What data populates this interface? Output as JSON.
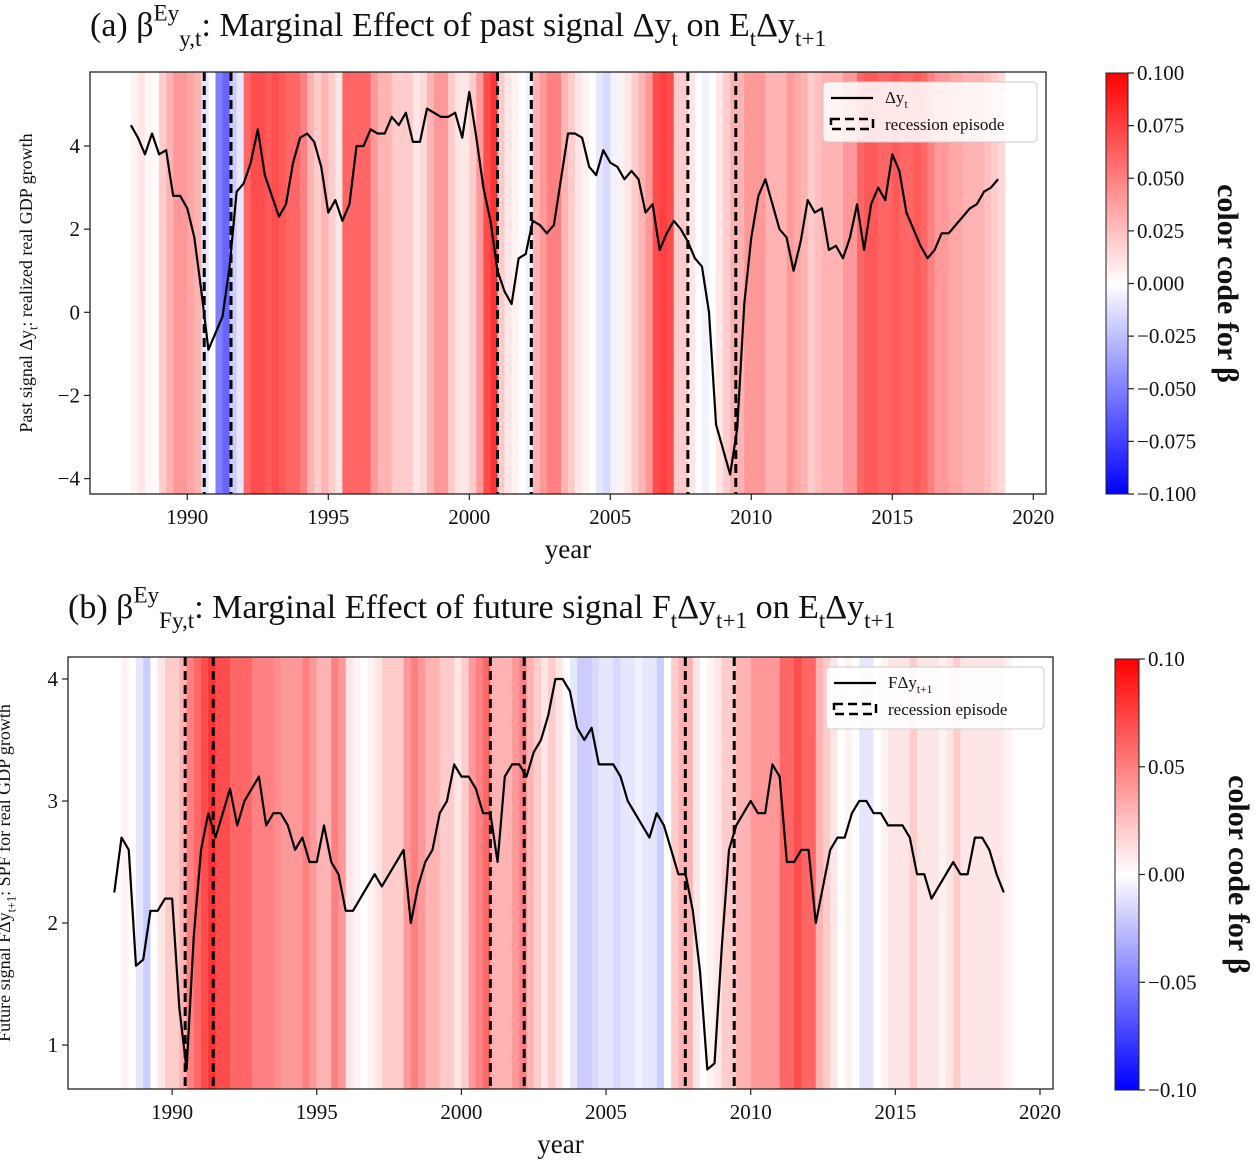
{
  "chart_data": [
    {
      "type": "line",
      "title": [
        {
          "text": "(a) β"
        },
        {
          "text": "Ey",
          "style": "sup"
        },
        {
          "text": "y,t",
          "style": "sub"
        },
        {
          "text": ": Marginal Effect of past signal Δy"
        },
        {
          "text": "t",
          "style": "sub"
        },
        {
          "text": " on E"
        },
        {
          "text": "t",
          "style": "sub"
        },
        {
          "text": "Δy"
        },
        {
          "text": "t+1",
          "style": "sub"
        }
      ],
      "xlabel": "year",
      "ylabel": [
        {
          "text": "Past signal Δy"
        },
        {
          "text": "t",
          "style": "sub"
        },
        {
          "text": ": realized real GDP growth"
        }
      ],
      "xlim": [
        1986.55,
        2020.45
      ],
      "ylim": [
        -4.37,
        5.78
      ],
      "xticks": [
        1990,
        1995,
        2000,
        2005,
        2010,
        2015,
        2020
      ],
      "yticks": [
        {
          "value": -4,
          "label": "−4"
        },
        {
          "value": -2,
          "label": "−2"
        },
        0,
        2,
        4
      ],
      "legend_loc": "upper right",
      "x": [
        1988,
        1988.25,
        1988.5,
        1988.75,
        1989,
        1989.25,
        1989.5,
        1989.75,
        1990,
        1990.25,
        1990.5,
        1990.75,
        1991,
        1991.25,
        1991.5,
        1991.75,
        1992,
        1992.25,
        1992.5,
        1992.75,
        1993,
        1993.25,
        1993.5,
        1993.75,
        1994,
        1994.25,
        1994.5,
        1994.75,
        1995,
        1995.25,
        1995.5,
        1995.75,
        1996,
        1996.25,
        1996.5,
        1996.75,
        1997,
        1997.25,
        1997.5,
        1997.75,
        1998,
        1998.25,
        1998.5,
        1998.75,
        1999,
        1999.25,
        1999.5,
        1999.75,
        2000,
        2000.25,
        2000.5,
        2000.75,
        2001,
        2001.25,
        2001.5,
        2001.75,
        2002,
        2002.25,
        2002.5,
        2002.75,
        2003,
        2003.25,
        2003.5,
        2003.75,
        2004,
        2004.25,
        2004.5,
        2004.75,
        2005,
        2005.25,
        2005.5,
        2005.75,
        2006,
        2006.25,
        2006.5,
        2006.75,
        2007,
        2007.25,
        2007.5,
        2007.75,
        2008,
        2008.25,
        2008.5,
        2008.75,
        2009,
        2009.25,
        2009.5,
        2009.75,
        2010,
        2010.25,
        2010.5,
        2010.75,
        2011,
        2011.25,
        2011.5,
        2011.75,
        2012,
        2012.25,
        2012.5,
        2012.75,
        2013,
        2013.25,
        2013.5,
        2013.75,
        2014,
        2014.25,
        2014.5,
        2014.75,
        2015,
        2015.25,
        2015.5,
        2015.75,
        2016,
        2016.25,
        2016.5,
        2016.75,
        2017,
        2017.25,
        2017.5,
        2017.75,
        2018,
        2018.25,
        2018.5,
        2018.75
      ],
      "series": [
        {
          "name": [
            {
              "text": "Δy"
            },
            {
              "text": "t",
              "style": "sub"
            }
          ],
          "color": "#000000",
          "values": [
            4.5,
            4.2,
            3.8,
            4.3,
            3.8,
            3.9,
            2.8,
            2.8,
            2.5,
            1.8,
            0.5,
            -0.9,
            -0.5,
            -0.1,
            1.1,
            2.9,
            3.1,
            3.6,
            4.4,
            3.3,
            2.8,
            2.3,
            2.6,
            3.6,
            4.2,
            4.3,
            4.1,
            3.5,
            2.4,
            2.7,
            2.2,
            2.6,
            4.0,
            4.0,
            4.4,
            4.3,
            4.3,
            4.7,
            4.5,
            4.8,
            4.1,
            4.1,
            4.9,
            4.8,
            4.7,
            4.7,
            4.8,
            4.2,
            5.3,
            4.2,
            3.0,
            2.2,
            1.0,
            0.5,
            0.2,
            1.3,
            1.4,
            2.2,
            2.1,
            1.9,
            2.1,
            3.2,
            4.3,
            4.3,
            4.2,
            3.5,
            3.3,
            3.9,
            3.6,
            3.5,
            3.2,
            3.4,
            3.2,
            2.4,
            2.6,
            1.5,
            1.9,
            2.2,
            2.0,
            1.7,
            1.3,
            1.1,
            0.0,
            -2.7,
            -3.3,
            -3.9,
            -2.8,
            0.2,
            1.8,
            2.8,
            3.2,
            2.6,
            2.0,
            1.8,
            1.0,
            1.7,
            2.7,
            2.4,
            2.5,
            1.5,
            1.6,
            1.3,
            1.8,
            2.6,
            1.5,
            2.6,
            3.0,
            2.7,
            3.8,
            3.4,
            2.4,
            2.0,
            1.6,
            1.3,
            1.5,
            1.9,
            1.9,
            2.1,
            2.3,
            2.5,
            2.6,
            2.9,
            3.0,
            3.2
          ]
        }
      ],
      "recessions": {
        "name": "recession episode",
        "color": "#000000",
        "x": [
          1990.6,
          1991.55,
          2001.0,
          2002.2,
          2007.75,
          2009.45
        ]
      },
      "background": {
        "colormap": "bwr",
        "values": [
          0.005,
          0.01,
          0.003,
          0.002,
          0.02,
          0.03,
          0.04,
          0.04,
          0.035,
          0.03,
          -0.01,
          0.0,
          -0.05,
          -0.06,
          -0.02,
          -0.01,
          0.06,
          0.07,
          0.07,
          0.065,
          0.07,
          0.065,
          0.06,
          0.06,
          0.05,
          0.03,
          0.02,
          0.03,
          0.02,
          0.01,
          0.06,
          0.06,
          0.06,
          0.06,
          0.04,
          0.03,
          0.03,
          0.02,
          0.02,
          0.02,
          0.01,
          0.015,
          0.03,
          0.04,
          0.04,
          0.02,
          0.01,
          0.01,
          0.02,
          0.04,
          0.07,
          0.08,
          0.02,
          0.01,
          0.005,
          0.0,
          -0.005,
          0.03,
          0.04,
          0.05,
          0.05,
          0.03,
          0.02,
          0.01,
          0.005,
          0.0,
          -0.01,
          -0.015,
          -0.005,
          0.005,
          0.01,
          0.02,
          0.03,
          0.04,
          0.07,
          0.075,
          0.07,
          0.02,
          0.02,
          0.01,
          0.0,
          -0.005,
          0.0,
          0.01,
          0.02,
          0.03,
          0.03,
          0.04,
          0.04,
          0.04,
          0.03,
          0.03,
          0.03,
          0.04,
          0.035,
          0.03,
          0.02,
          0.025,
          0.03,
          0.03,
          0.03,
          0.04,
          0.04,
          0.06,
          0.065,
          0.065,
          0.06,
          0.06,
          0.065,
          0.06,
          0.06,
          0.065,
          0.06,
          0.05,
          0.04,
          0.04,
          0.035,
          0.035,
          0.03,
          0.03,
          0.03,
          0.025,
          0.02,
          0.015
        ]
      },
      "colorbar": {
        "label": "color code for β",
        "clim": [
          -0.1,
          0.1
        ],
        "ticks": [
          {
            "value": 0.1,
            "label": "0.100"
          },
          {
            "value": 0.075,
            "label": "0.075"
          },
          {
            "value": 0.05,
            "label": "0.050"
          },
          {
            "value": 0.025,
            "label": "0.025"
          },
          {
            "value": 0,
            "label": "0.000"
          },
          {
            "value": -0.025,
            "label": "−0.025"
          },
          {
            "value": -0.05,
            "label": "−0.050"
          },
          {
            "value": -0.075,
            "label": "−0.075"
          },
          {
            "value": -0.1,
            "label": "−0.100"
          }
        ]
      }
    },
    {
      "type": "line",
      "title": [
        {
          "text": "(b) β"
        },
        {
          "text": "Ey",
          "style": "sup"
        },
        {
          "text": "Fy,t",
          "style": "sub"
        },
        {
          "text": ": Marginal Effect of future signal F"
        },
        {
          "text": "t",
          "style": "sub"
        },
        {
          "text": "Δy"
        },
        {
          "text": "t+1",
          "style": "sub"
        },
        {
          "text": " on E"
        },
        {
          "text": "t",
          "style": "sub"
        },
        {
          "text": "Δy"
        },
        {
          "text": "t+1",
          "style": "sub"
        }
      ],
      "xlabel": "year",
      "ylabel": [
        {
          "text": "Future signal FΔy"
        },
        {
          "text": "t+1",
          "style": "sub"
        },
        {
          "text": ": SPF for real GDP growth"
        }
      ],
      "xlim": [
        1986.4,
        2020.45
      ],
      "ylim": [
        0.64,
        4.18
      ],
      "xticks": [
        1990,
        1995,
        2000,
        2005,
        2010,
        2015,
        2020
      ],
      "yticks": [
        1,
        2,
        3,
        4
      ],
      "legend_loc": "upper right",
      "x": [
        1988,
        1988.25,
        1988.5,
        1988.75,
        1989,
        1989.25,
        1989.5,
        1989.75,
        1990,
        1990.25,
        1990.5,
        1990.75,
        1991,
        1991.25,
        1991.5,
        1991.75,
        1992,
        1992.25,
        1992.5,
        1992.75,
        1993,
        1993.25,
        1993.5,
        1993.75,
        1994,
        1994.25,
        1994.5,
        1994.75,
        1995,
        1995.25,
        1995.5,
        1995.75,
        1996,
        1996.25,
        1996.5,
        1996.75,
        1997,
        1997.25,
        1997.5,
        1997.75,
        1998,
        1998.25,
        1998.5,
        1998.75,
        1999,
        1999.25,
        1999.5,
        1999.75,
        2000,
        2000.25,
        2000.5,
        2000.75,
        2001,
        2001.25,
        2001.5,
        2001.75,
        2002,
        2002.25,
        2002.5,
        2002.75,
        2003,
        2003.25,
        2003.5,
        2003.75,
        2004,
        2004.25,
        2004.5,
        2004.75,
        2005,
        2005.25,
        2005.5,
        2005.75,
        2006,
        2006.25,
        2006.5,
        2006.75,
        2007,
        2007.25,
        2007.5,
        2007.75,
        2008,
        2008.25,
        2008.5,
        2008.75,
        2009,
        2009.25,
        2009.5,
        2009.75,
        2010,
        2010.25,
        2010.5,
        2010.75,
        2011,
        2011.25,
        2011.5,
        2011.75,
        2012,
        2012.25,
        2012.5,
        2012.75,
        2013,
        2013.25,
        2013.5,
        2013.75,
        2014,
        2014.25,
        2014.5,
        2014.75,
        2015,
        2015.25,
        2015.5,
        2015.75,
        2016,
        2016.25,
        2016.5,
        2016.75,
        2017,
        2017.25,
        2017.5,
        2017.75,
        2018,
        2018.25,
        2018.5,
        2018.75
      ],
      "series": [
        {
          "name": [
            {
              "text": "FΔy"
            },
            {
              "text": "t+1",
              "style": "sub"
            }
          ],
          "color": "#000000",
          "values": [
            2.25,
            2.7,
            2.6,
            1.65,
            1.7,
            2.1,
            2.1,
            2.2,
            2.2,
            1.3,
            0.8,
            1.9,
            2.6,
            2.9,
            2.7,
            2.9,
            3.1,
            2.8,
            3.0,
            3.1,
            3.2,
            2.8,
            2.9,
            2.9,
            2.8,
            2.6,
            2.7,
            2.5,
            2.5,
            2.8,
            2.5,
            2.4,
            2.1,
            2.1,
            2.2,
            2.3,
            2.4,
            2.3,
            2.4,
            2.5,
            2.6,
            2.0,
            2.3,
            2.5,
            2.6,
            2.9,
            3.0,
            3.3,
            3.2,
            3.2,
            3.1,
            2.9,
            2.9,
            2.5,
            3.2,
            3.3,
            3.3,
            3.2,
            3.4,
            3.5,
            3.7,
            4.0,
            4.0,
            3.9,
            3.6,
            3.5,
            3.6,
            3.3,
            3.3,
            3.3,
            3.2,
            3.0,
            2.9,
            2.8,
            2.7,
            2.9,
            2.8,
            2.6,
            2.4,
            2.4,
            2.1,
            1.6,
            0.8,
            0.85,
            1.8,
            2.6,
            2.8,
            2.9,
            3.0,
            2.9,
            2.9,
            3.3,
            3.2,
            2.5,
            2.5,
            2.6,
            2.6,
            2.0,
            2.3,
            2.6,
            2.7,
            2.7,
            2.9,
            3.0,
            3.0,
            2.9,
            2.9,
            2.8,
            2.8,
            2.8,
            2.7,
            2.4,
            2.4,
            2.2,
            2.3,
            2.4,
            2.5,
            2.4,
            2.4,
            2.7,
            2.7,
            2.6,
            2.4,
            2.25
          ]
        }
      ],
      "recessions": {
        "name": "recession episode",
        "color": "#000000",
        "x": [
          1990.45,
          1991.42,
          2001.0,
          2002.17,
          2007.74,
          2009.43
        ]
      },
      "background": {
        "colormap": "bwr",
        "values": [
          0.0,
          0.005,
          0.0,
          -0.01,
          -0.02,
          0.0,
          0.01,
          0.02,
          0.02,
          0.03,
          0.05,
          0.06,
          0.07,
          0.08,
          0.07,
          0.07,
          0.06,
          0.06,
          0.06,
          0.05,
          0.05,
          0.05,
          0.045,
          0.04,
          0.04,
          0.04,
          0.05,
          0.04,
          0.03,
          0.03,
          0.05,
          0.04,
          0.01,
          0.005,
          0.0,
          0.005,
          0.01,
          0.02,
          0.02,
          0.02,
          0.04,
          0.05,
          0.04,
          0.03,
          0.03,
          0.02,
          0.02,
          0.01,
          0.02,
          0.04,
          0.05,
          0.06,
          0.03,
          0.03,
          0.03,
          0.04,
          0.05,
          0.03,
          0.02,
          0.01,
          0.02,
          0.01,
          0.0,
          -0.01,
          -0.02,
          -0.02,
          -0.015,
          -0.01,
          -0.01,
          -0.015,
          -0.01,
          -0.01,
          -0.005,
          -0.01,
          -0.01,
          -0.02,
          0.0,
          0.02,
          0.03,
          0.03,
          0.01,
          0.0,
          0.005,
          0.01,
          0.02,
          0.02,
          0.03,
          0.03,
          0.04,
          0.04,
          0.04,
          0.04,
          0.06,
          0.06,
          0.07,
          0.06,
          0.06,
          0.03,
          0.02,
          0.01,
          0.0,
          0.005,
          0.0,
          -0.01,
          -0.01,
          0.0,
          0.005,
          0.01,
          0.01,
          0.01,
          0.02,
          0.01,
          0.01,
          0.01,
          0.005,
          0.01,
          0.02,
          0.01,
          0.01,
          0.01,
          0.01,
          0.01,
          0.01,
          0.005
        ]
      },
      "colorbar": {
        "label": "color code for β",
        "clim": [
          -0.1,
          0.1
        ],
        "ticks": [
          {
            "value": 0.1,
            "label": "0.10"
          },
          {
            "value": 0.05,
            "label": "0.05"
          },
          {
            "value": 0,
            "label": "0.00"
          },
          {
            "value": -0.05,
            "label": "−0.05"
          },
          {
            "value": -0.1,
            "label": "−0.10"
          }
        ]
      }
    }
  ]
}
